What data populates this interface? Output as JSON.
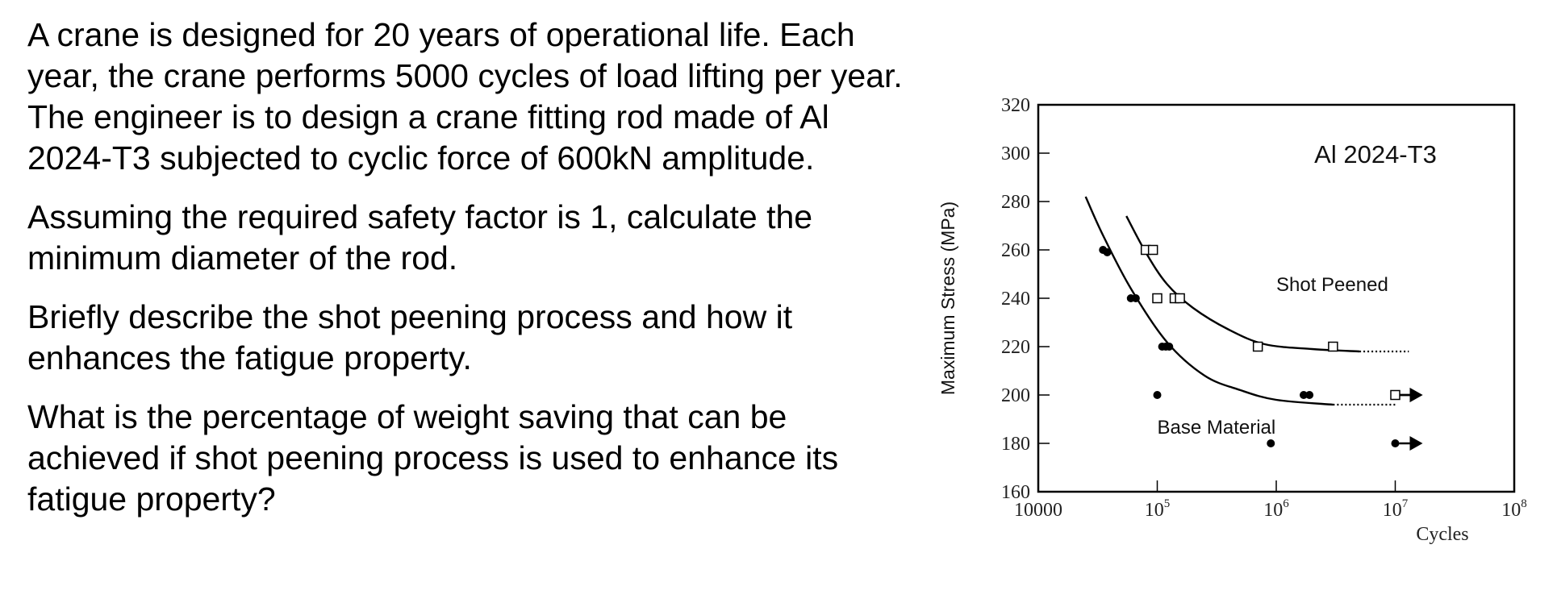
{
  "question": {
    "paragraphs": [
      "A crane is designed for 20 years of operational life. Each year, the crane performs 5000 cycles of load lifting per year. The engineer is to design a crane fitting rod made of Al 2024-T3 subjected to cyclic force of 600kN amplitude.",
      "Assuming the required safety factor is 1, calculate the minimum diameter of the rod.",
      "Briefly describe the shot peening process and how it enhances the fatigue property.",
      "What is the percentage of weight saving that can be achieved if shot peening process is used to enhance its fatigue property?"
    ]
  },
  "chart_data": {
    "type": "scatter",
    "title": "Al 2024-T3",
    "xlabel": "Cycles",
    "ylabel": "Maximum Stress (MPa)",
    "x_scale": "log",
    "xlim": [
      10000,
      100000000
    ],
    "ylim": [
      160,
      320
    ],
    "x_ticks": [
      {
        "value": 10000,
        "label": "10000"
      },
      {
        "value": 100000,
        "base": "10",
        "exp": "5"
      },
      {
        "value": 1000000,
        "base": "10",
        "exp": "6"
      },
      {
        "value": 10000000,
        "base": "10",
        "exp": "7"
      },
      {
        "value": 100000000,
        "base": "10",
        "exp": "8"
      }
    ],
    "y_ticks": [
      160,
      180,
      200,
      220,
      240,
      260,
      280,
      300,
      320
    ],
    "grid": false,
    "colors": {
      "marks": "#000000",
      "axis": "#000000"
    },
    "series": [
      {
        "name": "Base Material",
        "marker": "filled-circle",
        "points": [
          {
            "x": 35000,
            "y": 260
          },
          {
            "x": 38000,
            "y": 259
          },
          {
            "x": 60000,
            "y": 240
          },
          {
            "x": 66000,
            "y": 240
          },
          {
            "x": 110000,
            "y": 220
          },
          {
            "x": 118000,
            "y": 220
          },
          {
            "x": 126000,
            "y": 220
          },
          {
            "x": 100000,
            "y": 200
          },
          {
            "x": 900000,
            "y": 180
          },
          {
            "x": 1700000,
            "y": 200
          },
          {
            "x": 1900000,
            "y": 200
          },
          {
            "x": 10000000,
            "y": 200,
            "runout": true
          },
          {
            "x": 10000000,
            "y": 180,
            "runout": true
          }
        ],
        "curve": [
          {
            "x": 25000,
            "y": 282
          },
          {
            "x": 35000,
            "y": 266
          },
          {
            "x": 60000,
            "y": 244
          },
          {
            "x": 120000,
            "y": 222
          },
          {
            "x": 250000,
            "y": 208
          },
          {
            "x": 500000,
            "y": 202
          },
          {
            "x": 1000000,
            "y": 198
          },
          {
            "x": 3000000,
            "y": 196
          }
        ],
        "curve_extension": [
          {
            "x": 3000000,
            "y": 196
          },
          {
            "x": 10000000,
            "y": 196
          }
        ]
      },
      {
        "name": "Shot Peened",
        "marker": "open-square",
        "points": [
          {
            "x": 80000,
            "y": 260
          },
          {
            "x": 92000,
            "y": 260
          },
          {
            "x": 100000,
            "y": 240
          },
          {
            "x": 140000,
            "y": 240
          },
          {
            "x": 155000,
            "y": 240
          },
          {
            "x": 700000,
            "y": 220
          },
          {
            "x": 3000000,
            "y": 220
          },
          {
            "x": 10000000,
            "y": 200,
            "runout": true
          }
        ],
        "curve": [
          {
            "x": 55000,
            "y": 274
          },
          {
            "x": 80000,
            "y": 259
          },
          {
            "x": 120000,
            "y": 246
          },
          {
            "x": 200000,
            "y": 236
          },
          {
            "x": 400000,
            "y": 227
          },
          {
            "x": 800000,
            "y": 221
          },
          {
            "x": 2000000,
            "y": 219
          },
          {
            "x": 5000000,
            "y": 218
          }
        ],
        "curve_extension": [
          {
            "x": 5000000,
            "y": 218
          },
          {
            "x": 13000000,
            "y": 218
          }
        ]
      }
    ],
    "annotations": [
      {
        "text": "Shot Peened",
        "x": 1000000,
        "y": 243
      },
      {
        "text": "Base Material",
        "x": 100000,
        "y": 184
      }
    ]
  }
}
